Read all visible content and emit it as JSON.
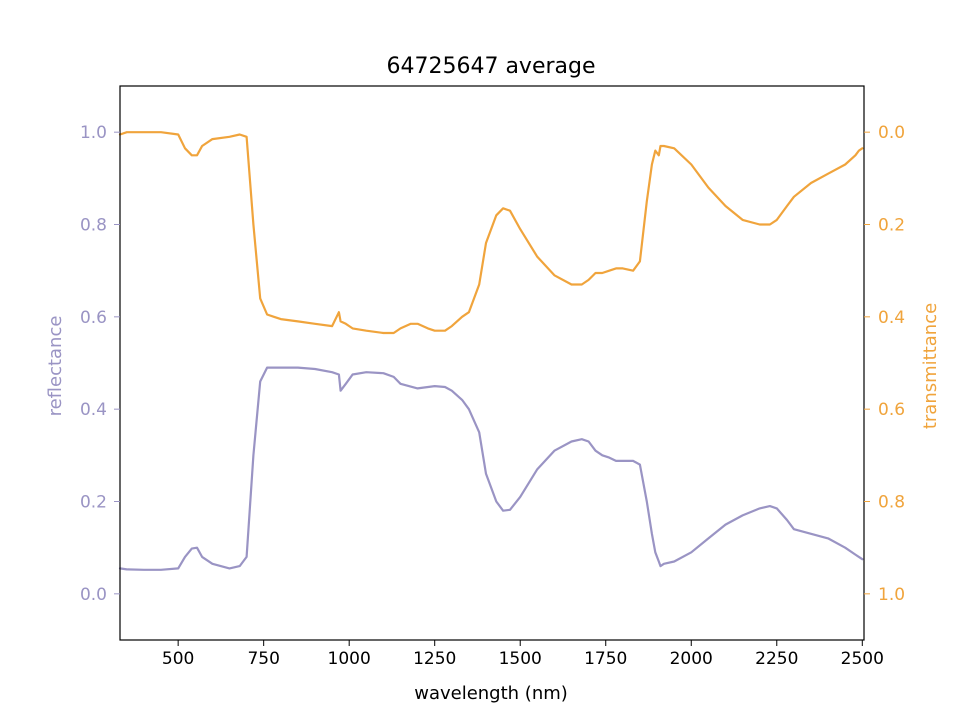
{
  "chart_data": {
    "type": "line",
    "title": "64725647 average",
    "xlabel": "wavelength (nm)",
    "ylabel_left": "reflectance",
    "ylabel_right": "transmittance",
    "xlim": [
      330,
      2505
    ],
    "ylim_left": [
      -0.1,
      1.1
    ],
    "ylim_right": [
      1.1,
      -0.1
    ],
    "x_ticks": [
      500,
      750,
      1000,
      1250,
      1500,
      1750,
      2000,
      2250,
      2500
    ],
    "y_ticks_left": [
      0.0,
      0.2,
      0.4,
      0.6,
      0.8,
      1.0
    ],
    "y_ticks_right": [
      0.0,
      0.2,
      0.4,
      0.6,
      0.8,
      1.0
    ],
    "grid": false,
    "colors": {
      "reflectance": "#9a94c4",
      "transmittance": "#f0a43c",
      "axes": "#000000"
    },
    "series": [
      {
        "name": "reflectance",
        "axis": "left",
        "x": [
          330,
          350,
          400,
          450,
          500,
          520,
          540,
          555,
          570,
          600,
          650,
          680,
          700,
          720,
          740,
          760,
          780,
          800,
          850,
          900,
          950,
          970,
          975,
          990,
          1000,
          1010,
          1050,
          1100,
          1130,
          1150,
          1200,
          1250,
          1280,
          1300,
          1330,
          1350,
          1380,
          1400,
          1430,
          1450,
          1470,
          1500,
          1550,
          1600,
          1650,
          1680,
          1700,
          1720,
          1740,
          1760,
          1780,
          1800,
          1830,
          1850,
          1870,
          1885,
          1895,
          1905,
          1910,
          1920,
          1950,
          2000,
          2050,
          2100,
          2150,
          2200,
          2230,
          2250,
          2280,
          2300,
          2350,
          2400,
          2450,
          2480,
          2490,
          2500
        ],
        "y": [
          0.055,
          0.053,
          0.052,
          0.052,
          0.055,
          0.08,
          0.098,
          0.1,
          0.08,
          0.065,
          0.055,
          0.06,
          0.08,
          0.3,
          0.46,
          0.49,
          0.49,
          0.49,
          0.49,
          0.487,
          0.48,
          0.475,
          0.44,
          0.455,
          0.465,
          0.475,
          0.48,
          0.478,
          0.47,
          0.455,
          0.445,
          0.45,
          0.448,
          0.44,
          0.42,
          0.4,
          0.35,
          0.26,
          0.2,
          0.18,
          0.182,
          0.21,
          0.27,
          0.31,
          0.33,
          0.335,
          0.33,
          0.31,
          0.3,
          0.295,
          0.288,
          0.288,
          0.288,
          0.28,
          0.2,
          0.13,
          0.09,
          0.07,
          0.06,
          0.065,
          0.07,
          0.09,
          0.12,
          0.15,
          0.17,
          0.185,
          0.19,
          0.185,
          0.16,
          0.14,
          0.13,
          0.12,
          0.1,
          0.085,
          0.08,
          0.075
        ]
      },
      {
        "name": "transmittance",
        "axis": "right",
        "x": [
          330,
          350,
          400,
          450,
          500,
          520,
          540,
          555,
          570,
          600,
          650,
          680,
          700,
          720,
          740,
          760,
          780,
          800,
          850,
          900,
          950,
          970,
          975,
          990,
          1000,
          1010,
          1050,
          1100,
          1130,
          1150,
          1180,
          1200,
          1230,
          1250,
          1280,
          1300,
          1330,
          1350,
          1380,
          1400,
          1430,
          1450,
          1470,
          1500,
          1550,
          1600,
          1650,
          1680,
          1700,
          1720,
          1740,
          1760,
          1780,
          1800,
          1830,
          1850,
          1870,
          1885,
          1895,
          1905,
          1910,
          1920,
          1950,
          2000,
          2050,
          2100,
          2150,
          2200,
          2230,
          2250,
          2280,
          2300,
          2350,
          2400,
          2450,
          2480,
          2490,
          2500
        ],
        "y": [
          0.005,
          0.0,
          0.0,
          0.0,
          0.005,
          0.035,
          0.05,
          0.05,
          0.03,
          0.015,
          0.01,
          0.005,
          0.01,
          0.2,
          0.36,
          0.395,
          0.4,
          0.405,
          0.41,
          0.415,
          0.42,
          0.39,
          0.41,
          0.415,
          0.42,
          0.425,
          0.43,
          0.435,
          0.435,
          0.425,
          0.415,
          0.415,
          0.425,
          0.43,
          0.43,
          0.42,
          0.4,
          0.39,
          0.33,
          0.24,
          0.18,
          0.165,
          0.17,
          0.21,
          0.27,
          0.31,
          0.33,
          0.33,
          0.32,
          0.305,
          0.305,
          0.3,
          0.295,
          0.295,
          0.3,
          0.28,
          0.15,
          0.07,
          0.04,
          0.05,
          0.03,
          0.03,
          0.035,
          0.07,
          0.12,
          0.16,
          0.19,
          0.2,
          0.2,
          0.19,
          0.16,
          0.14,
          0.11,
          0.09,
          0.07,
          0.05,
          0.04,
          0.035
        ]
      }
    ]
  }
}
